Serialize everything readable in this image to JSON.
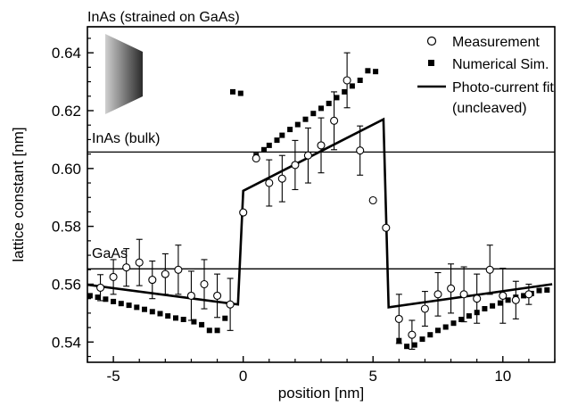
{
  "chart_data": {
    "type": "scatter",
    "xlabel": "position [nm]",
    "ylabel": "lattice constant [nm]",
    "xlim": [
      -6,
      12
    ],
    "ylim": [
      0.533,
      0.649
    ],
    "x_ticks": [
      -5,
      0,
      5,
      10
    ],
    "y_ticks": [
      0.54,
      0.56,
      0.58,
      0.6,
      0.62,
      0.64
    ],
    "reference_lines": [
      {
        "label": "InAs (strained on GaAs)",
        "y": 0.649
      },
      {
        "label": "InAs (bulk)",
        "y": 0.6057
      },
      {
        "label": "GaAs",
        "y": 0.5653
      }
    ],
    "legend_position": "top-right",
    "series": [
      {
        "name": "Measurement",
        "marker": "open-circle",
        "points": [
          {
            "x": -5.5,
            "y": 0.5588,
            "err": 0.0045
          },
          {
            "x": -5.0,
            "y": 0.5625,
            "err": 0.006
          },
          {
            "x": -4.5,
            "y": 0.5658,
            "err": 0.0065
          },
          {
            "x": -4.0,
            "y": 0.5675,
            "err": 0.008
          },
          {
            "x": -3.5,
            "y": 0.5615,
            "err": 0.0065
          },
          {
            "x": -3.0,
            "y": 0.5635,
            "err": 0.007
          },
          {
            "x": -2.5,
            "y": 0.565,
            "err": 0.0085
          },
          {
            "x": -2.0,
            "y": 0.556,
            "err": 0.0085
          },
          {
            "x": -1.5,
            "y": 0.56,
            "err": 0.0085
          },
          {
            "x": -1.0,
            "y": 0.556,
            "err": 0.0075
          },
          {
            "x": -0.5,
            "y": 0.553,
            "err": 0.009
          },
          {
            "x": 0.0,
            "y": 0.5848,
            "err": 0.0
          },
          {
            "x": 0.5,
            "y": 0.6035,
            "err": 0.0
          },
          {
            "x": 1.0,
            "y": 0.595,
            "err": 0.008
          },
          {
            "x": 1.5,
            "y": 0.5965,
            "err": 0.008
          },
          {
            "x": 2.0,
            "y": 0.6012,
            "err": 0.0085
          },
          {
            "x": 2.5,
            "y": 0.6045,
            "err": 0.0095
          },
          {
            "x": 3.0,
            "y": 0.608,
            "err": 0.0095
          },
          {
            "x": 3.5,
            "y": 0.6165,
            "err": 0.01
          },
          {
            "x": 4.0,
            "y": 0.6305,
            "err": 0.0095
          },
          {
            "x": 4.5,
            "y": 0.6062,
            "err": 0.0085
          },
          {
            "x": 5.0,
            "y": 0.589,
            "err": 0.0
          },
          {
            "x": 5.5,
            "y": 0.5795,
            "err": 0.0
          },
          {
            "x": 6.0,
            "y": 0.548,
            "err": 0.0085
          },
          {
            "x": 6.5,
            "y": 0.5425,
            "err": 0.005
          },
          {
            "x": 7.0,
            "y": 0.5515,
            "err": 0.006
          },
          {
            "x": 7.5,
            "y": 0.5565,
            "err": 0.0075
          },
          {
            "x": 8.0,
            "y": 0.5585,
            "err": 0.0085
          },
          {
            "x": 8.5,
            "y": 0.5565,
            "err": 0.0095
          },
          {
            "x": 9.0,
            "y": 0.555,
            "err": 0.0085
          },
          {
            "x": 9.5,
            "y": 0.565,
            "err": 0.0085
          },
          {
            "x": 10.0,
            "y": 0.556,
            "err": 0.0095
          },
          {
            "x": 10.5,
            "y": 0.5545,
            "err": 0.0065
          },
          {
            "x": 11.0,
            "y": 0.5565,
            "err": 0.0035
          }
        ]
      },
      {
        "name": "Numerical Sim.",
        "marker": "filled-square",
        "points": [
          {
            "x": -5.9,
            "y": 0.556
          },
          {
            "x": -5.6,
            "y": 0.5555
          },
          {
            "x": -5.3,
            "y": 0.5548
          },
          {
            "x": -5.0,
            "y": 0.554
          },
          {
            "x": -4.7,
            "y": 0.5533
          },
          {
            "x": -4.4,
            "y": 0.5527
          },
          {
            "x": -4.1,
            "y": 0.552
          },
          {
            "x": -3.8,
            "y": 0.5513
          },
          {
            "x": -3.5,
            "y": 0.5505
          },
          {
            "x": -3.2,
            "y": 0.5498
          },
          {
            "x": -2.9,
            "y": 0.549
          },
          {
            "x": -2.6,
            "y": 0.5483
          },
          {
            "x": -2.3,
            "y": 0.5478
          },
          {
            "x": -1.9,
            "y": 0.547
          },
          {
            "x": -1.6,
            "y": 0.546
          },
          {
            "x": -1.3,
            "y": 0.544
          },
          {
            "x": -1.0,
            "y": 0.544
          },
          {
            "x": -0.7,
            "y": 0.5482
          },
          {
            "x": -0.4,
            "y": 0.6265
          },
          {
            "x": -0.1,
            "y": 0.626
          },
          {
            "x": 0.5,
            "y": 0.6045
          },
          {
            "x": 0.8,
            "y": 0.6065
          },
          {
            "x": 1.0,
            "y": 0.608
          },
          {
            "x": 1.3,
            "y": 0.6098
          },
          {
            "x": 1.5,
            "y": 0.6115
          },
          {
            "x": 1.8,
            "y": 0.6135
          },
          {
            "x": 2.1,
            "y": 0.6152
          },
          {
            "x": 2.4,
            "y": 0.617
          },
          {
            "x": 2.7,
            "y": 0.619
          },
          {
            "x": 3.0,
            "y": 0.6208
          },
          {
            "x": 3.3,
            "y": 0.6225
          },
          {
            "x": 3.6,
            "y": 0.6245
          },
          {
            "x": 3.9,
            "y": 0.6265
          },
          {
            "x": 4.2,
            "y": 0.6285
          },
          {
            "x": 4.5,
            "y": 0.6305
          },
          {
            "x": 4.8,
            "y": 0.6338
          },
          {
            "x": 5.1,
            "y": 0.6335
          },
          {
            "x": 6.0,
            "y": 0.5405
          },
          {
            "x": 6.3,
            "y": 0.5385
          },
          {
            "x": 6.6,
            "y": 0.539
          },
          {
            "x": 6.9,
            "y": 0.541
          },
          {
            "x": 7.2,
            "y": 0.5425
          },
          {
            "x": 7.5,
            "y": 0.544
          },
          {
            "x": 7.8,
            "y": 0.5452
          },
          {
            "x": 8.1,
            "y": 0.5465
          },
          {
            "x": 8.4,
            "y": 0.5478
          },
          {
            "x": 8.7,
            "y": 0.549
          },
          {
            "x": 9.0,
            "y": 0.5502
          },
          {
            "x": 9.3,
            "y": 0.5515
          },
          {
            "x": 9.6,
            "y": 0.5525
          },
          {
            "x": 9.9,
            "y": 0.5535
          },
          {
            "x": 10.2,
            "y": 0.5545
          },
          {
            "x": 10.5,
            "y": 0.5555
          },
          {
            "x": 10.8,
            "y": 0.556
          },
          {
            "x": 11.1,
            "y": 0.5568
          },
          {
            "x": 11.4,
            "y": 0.5578
          },
          {
            "x": 11.7,
            "y": 0.558
          }
        ]
      },
      {
        "name": "Photo-current fit (uncleaved)",
        "name_lines": [
          "Photo-current fit",
          "(uncleaved)"
        ],
        "marker": "line",
        "points": [
          {
            "x": -6.0,
            "y": 0.5598
          },
          {
            "x": -0.2,
            "y": 0.553
          },
          {
            "x": 0.0,
            "y": 0.5923
          },
          {
            "x": 5.4,
            "y": 0.617
          },
          {
            "x": 5.6,
            "y": 0.552
          },
          {
            "x": 11.9,
            "y": 0.56
          }
        ]
      }
    ]
  }
}
